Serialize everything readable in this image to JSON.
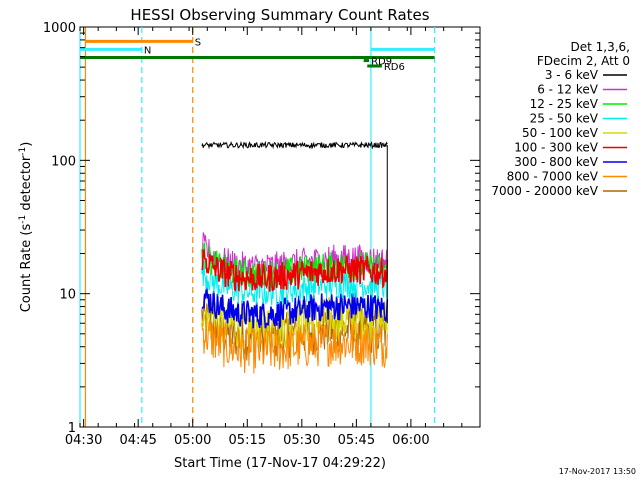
{
  "chart_data": {
    "type": "line",
    "title": "HESSI Observing Summary Count Rates",
    "xlabel": "Start Time (17-Nov-17 04:29:22)",
    "ylabel_main": "Count Rate (s",
    "ylabel_sup1": "-1",
    "ylabel_mid": " detector",
    "ylabel_sup2": "-1",
    "ylabel_end": ")",
    "yscale": "log",
    "ylim": [
      1,
      1000
    ],
    "xlim_minutes": [
      0,
      110
    ],
    "xticks": [
      {
        "m": 1,
        "label": "04:30"
      },
      {
        "m": 16,
        "label": "04:45"
      },
      {
        "m": 31,
        "label": "05:00"
      },
      {
        "m": 46,
        "label": "05:15"
      },
      {
        "m": 61,
        "label": "05:30"
      },
      {
        "m": 76,
        "label": "05:45"
      },
      {
        "m": 91,
        "label": "06:00"
      }
    ],
    "yticks": [
      {
        "v": 1,
        "label": "1"
      },
      {
        "v": 10,
        "label": "10"
      },
      {
        "v": 100,
        "label": "100"
      },
      {
        "v": 1000,
        "label": "1000"
      }
    ],
    "legend_header": [
      "Det 1,3,6,",
      "FDecim 2, Att 0"
    ],
    "legend_placement": "right",
    "series": [
      {
        "name": "3 - 6 keV",
        "color": "#000000",
        "level": 130
      },
      {
        "name": "6 - 12 keV",
        "color": "#cc33cc",
        "level": 17
      },
      {
        "name": "12 - 25 keV",
        "color": "#00ee00",
        "level": 15
      },
      {
        "name": "25 - 50 keV",
        "color": "#00eeee",
        "level": 11
      },
      {
        "name": "50 - 100 keV",
        "color": "#d8d800",
        "level": 6
      },
      {
        "name": "100 - 300 keV",
        "color": "#ee0000",
        "level": 14
      },
      {
        "name": "300 - 800 keV",
        "color": "#0000ee",
        "level": 7.5
      },
      {
        "name": "800 - 7000 keV",
        "color": "#ff8800",
        "level": 4
      },
      {
        "name": "7000 - 20000 keV",
        "color": "#aa6600",
        "level": 5
      }
    ],
    "data_start_minutes": 33.5,
    "data_end_minutes": 84.5,
    "status_bars": [
      {
        "label": "S",
        "color": "#ff8800",
        "from": 1.5,
        "to": 31,
        "value": 780
      },
      {
        "label": "N",
        "color": "#33eeff",
        "from": 0,
        "to": 17,
        "value": 680
      },
      {
        "label": "",
        "color": "#33eeff",
        "from": 80,
        "to": 97.5,
        "value": 680
      },
      {
        "label": "",
        "color": "#007700",
        "from": 0,
        "to": 97.5,
        "value": 590
      },
      {
        "label": "RD9",
        "color": "#007700",
        "from": 78,
        "to": 79.5,
        "value": 560
      },
      {
        "label": "RD6",
        "color": "#007700",
        "from": 79,
        "to": 83,
        "value": 510
      }
    ],
    "vlines": [
      {
        "m": 0,
        "color": "#33eeff",
        "dashed": false
      },
      {
        "m": 1.5,
        "color": "#ff8800",
        "dashed": false
      },
      {
        "m": 17,
        "color": "#33eeff",
        "dashed": true
      },
      {
        "m": 31,
        "color": "#ff8800",
        "dashed": true
      },
      {
        "m": 80,
        "color": "#33eeff",
        "dashed": false
      },
      {
        "m": 97.5,
        "color": "#33eeff",
        "dashed": true
      }
    ],
    "grid": false
  },
  "footer_timestamp": "17-Nov-2017 13:50"
}
